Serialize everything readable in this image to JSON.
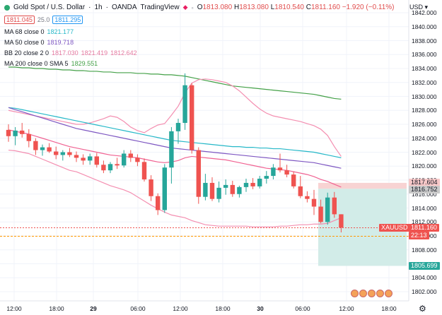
{
  "header": {
    "symbol": "Gold Spot / U.S. Dollar",
    "interval": "1h",
    "exchange": "OANDA",
    "platform": "TradingView",
    "bid": "1811.045",
    "spread": "25.0",
    "ask": "1811.295",
    "ohlc": {
      "open_label": "O",
      "open": "1813.080",
      "high_label": "H",
      "high": "1813.080",
      "low_label": "L",
      "low": "1810.540",
      "close_label": "C",
      "close": "1811.160",
      "change": "−1.920 (−0.11%)"
    },
    "currency": "USD"
  },
  "indicators": [
    {
      "name": "MA 68 close 0",
      "values": [
        "1821.177"
      ],
      "color": "#26b8c8"
    },
    {
      "name": "MA 50 close 0",
      "values": [
        "1819.718"
      ],
      "color": "#7e57c2"
    },
    {
      "name": "BB 20 close 2 0",
      "values": [
        "1817.030",
        "1821.419",
        "1812.642"
      ],
      "color": "#e57aa0"
    },
    {
      "name": "MA 200 close 0 SMA 5",
      "values": [
        "1829.551"
      ],
      "color": "#43a047"
    }
  ],
  "price_axis": {
    "ticks": [
      "1842.000",
      "1840.000",
      "1838.000",
      "1836.000",
      "1834.000",
      "1832.000",
      "1830.000",
      "1828.000",
      "1826.000",
      "1824.000",
      "1822.000",
      "1820.000",
      "1818.000",
      "1816.000",
      "1814.000",
      "1812.000",
      "1810.000",
      "1808.000",
      "1806.000",
      "1804.000",
      "1802.000"
    ],
    "tags": {
      "stop": "1817.604",
      "entry": "1816.752",
      "current_symbol": "XAUUSD",
      "current": "1811.160",
      "countdown": "22:13",
      "target": "1805.699"
    }
  },
  "time_axis": [
    "12:00",
    "18:00",
    "29",
    "06:00",
    "12:00",
    "18:00",
    "30",
    "06:00",
    "12:00",
    "18:00"
  ],
  "colors": {
    "up": "#26a69a",
    "down": "#ef5350",
    "stop_zone": "#f8d3d3",
    "target_zone": "#d2ece8"
  },
  "chart_data": {
    "type": "candlestick",
    "ylim": [
      1801,
      1843
    ],
    "candles": [
      [
        1825.2,
        1826.0,
        1823.5,
        1824.3
      ],
      [
        1824.3,
        1825.6,
        1823.0,
        1825.1
      ],
      [
        1825.1,
        1826.2,
        1824.1,
        1824.6
      ],
      [
        1824.6,
        1825.3,
        1822.7,
        1823.6
      ],
      [
        1823.6,
        1824.0,
        1821.6,
        1822.3
      ],
      [
        1822.3,
        1823.1,
        1821.5,
        1822.7
      ],
      [
        1822.7,
        1823.3,
        1821.9,
        1822.1
      ],
      [
        1822.1,
        1822.8,
        1821.0,
        1821.6
      ],
      [
        1821.6,
        1822.3,
        1820.8,
        1822.0
      ],
      [
        1822.0,
        1822.6,
        1821.3,
        1821.6
      ],
      [
        1821.6,
        1822.1,
        1820.6,
        1821.2
      ],
      [
        1821.2,
        1821.7,
        1820.2,
        1820.8
      ],
      [
        1820.8,
        1821.8,
        1820.2,
        1821.4
      ],
      [
        1821.4,
        1821.9,
        1819.8,
        1820.2
      ],
      [
        1820.2,
        1820.8,
        1819.0,
        1819.4
      ],
      [
        1819.4,
        1820.6,
        1819.0,
        1820.3
      ],
      [
        1820.3,
        1821.2,
        1819.6,
        1820.1
      ],
      [
        1820.1,
        1822.3,
        1819.8,
        1821.8
      ],
      [
        1821.8,
        1822.3,
        1820.6,
        1821.2
      ],
      [
        1821.2,
        1821.7,
        1820.0,
        1820.6
      ],
      [
        1820.6,
        1821.1,
        1817.8,
        1818.1
      ],
      [
        1818.1,
        1818.7,
        1815.0,
        1815.7
      ],
      [
        1815.7,
        1816.1,
        1813.0,
        1813.7
      ],
      [
        1813.7,
        1820.3,
        1813.3,
        1819.8
      ],
      [
        1819.8,
        1825.6,
        1817.5,
        1825.0
      ],
      [
        1825.0,
        1826.8,
        1823.2,
        1826.2
      ],
      [
        1826.2,
        1833.3,
        1825.2,
        1831.6
      ],
      [
        1831.6,
        1831.9,
        1821.8,
        1822.3
      ],
      [
        1822.3,
        1822.7,
        1814.6,
        1815.6
      ],
      [
        1815.6,
        1818.9,
        1815.1,
        1817.6
      ],
      [
        1817.6,
        1818.4,
        1815.0,
        1815.3
      ],
      [
        1815.3,
        1817.8,
        1814.8,
        1816.9
      ],
      [
        1816.9,
        1818.1,
        1815.9,
        1817.3
      ],
      [
        1817.3,
        1817.9,
        1815.6,
        1816.0
      ],
      [
        1816.0,
        1817.2,
        1815.5,
        1817.0
      ],
      [
        1817.0,
        1818.2,
        1816.3,
        1817.6
      ],
      [
        1817.6,
        1818.3,
        1816.7,
        1817.1
      ],
      [
        1817.1,
        1818.6,
        1816.8,
        1818.2
      ],
      [
        1818.2,
        1819.3,
        1817.5,
        1818.6
      ],
      [
        1818.6,
        1820.3,
        1818.1,
        1819.8
      ],
      [
        1819.8,
        1821.8,
        1819.1,
        1819.4
      ],
      [
        1819.4,
        1820.2,
        1818.4,
        1818.8
      ],
      [
        1818.8,
        1819.2,
        1816.8,
        1817.1
      ],
      [
        1817.1,
        1818.6,
        1815.4,
        1815.7
      ],
      [
        1815.7,
        1816.4,
        1814.8,
        1815.3
      ],
      [
        1815.3,
        1816.6,
        1813.0,
        1814.2
      ],
      [
        1814.2,
        1815.2,
        1811.8,
        1812.0
      ],
      [
        1812.0,
        1816.2,
        1811.6,
        1815.5
      ],
      [
        1815.5,
        1816.3,
        1812.6,
        1813.1
      ],
      [
        1813.1,
        1813.1,
        1810.5,
        1811.2
      ]
    ],
    "ma68": [
      1828.4,
      1828.3,
      1828.1,
      1827.9,
      1827.7,
      1827.5,
      1827.3,
      1827.1,
      1826.9,
      1826.7,
      1826.5,
      1826.3,
      1826.1,
      1825.9,
      1825.7,
      1825.5,
      1825.3,
      1825.1,
      1824.9,
      1824.7,
      1824.5,
      1824.3,
      1824.1,
      1823.9,
      1823.7,
      1823.6,
      1823.5,
      1823.4,
      1823.3,
      1823.2,
      1823.1,
      1823.0,
      1822.9,
      1822.8,
      1822.8,
      1822.7,
      1822.7,
      1822.6,
      1822.6,
      1822.5,
      1822.5,
      1822.4,
      1822.3,
      1822.2,
      1822.1,
      1822.0,
      1821.8,
      1821.6,
      1821.4,
      1821.2
    ],
    "ma50": [
      1828.4,
      1828.1,
      1827.8,
      1827.5,
      1827.2,
      1826.9,
      1826.6,
      1826.3,
      1826.0,
      1825.7,
      1825.4,
      1825.2,
      1825.0,
      1824.8,
      1824.6,
      1824.4,
      1824.2,
      1824.0,
      1823.8,
      1823.6,
      1823.4,
      1823.2,
      1823.0,
      1822.8,
      1822.6,
      1822.5,
      1822.4,
      1822.3,
      1822.2,
      1822.1,
      1822.0,
      1821.9,
      1821.8,
      1821.7,
      1821.6,
      1821.5,
      1821.4,
      1821.3,
      1821.2,
      1821.1,
      1821.0,
      1820.9,
      1820.8,
      1820.7,
      1820.6,
      1820.5,
      1820.3,
      1820.1,
      1819.9,
      1819.7
    ],
    "bb_mid": [
      1825.2,
      1825.0,
      1824.8,
      1824.6,
      1824.3,
      1824.0,
      1823.7,
      1823.4,
      1823.1,
      1822.8,
      1822.6,
      1822.4,
      1822.2,
      1822.0,
      1821.8,
      1821.6,
      1821.5,
      1821.4,
      1821.3,
      1821.2,
      1821.0,
      1820.8,
      1820.6,
      1820.5,
      1820.6,
      1820.8,
      1821.2,
      1821.4,
      1821.3,
      1821.2,
      1821.1,
      1821.0,
      1820.9,
      1820.7,
      1820.5,
      1820.3,
      1820.1,
      1819.9,
      1819.7,
      1819.6,
      1819.5,
      1819.4,
      1819.2,
      1819.0,
      1818.8,
      1818.5,
      1818.1,
      1817.8,
      1817.4,
      1817.0
    ],
    "bb_up": [
      1828.0,
      1827.8,
      1827.6,
      1827.4,
      1827.2,
      1827.0,
      1826.8,
      1826.6,
      1826.4,
      1826.2,
      1826.0,
      1826.0,
      1826.2,
      1826.5,
      1826.8,
      1827.2,
      1827.0,
      1826.4,
      1825.6,
      1825.1,
      1824.8,
      1825.4,
      1825.9,
      1826.1,
      1827.3,
      1828.6,
      1830.5,
      1831.9,
      1832.4,
      1832.5,
      1832.4,
      1832.2,
      1832.0,
      1831.5,
      1830.8,
      1829.9,
      1829.0,
      1828.2,
      1827.6,
      1827.2,
      1827.0,
      1826.8,
      1826.6,
      1826.4,
      1826.1,
      1825.8,
      1825.3,
      1824.4,
      1822.8,
      1821.4
    ],
    "bb_low": [
      1822.3,
      1822.2,
      1822.0,
      1821.8,
      1821.4,
      1821.0,
      1820.6,
      1820.2,
      1819.8,
      1819.4,
      1819.2,
      1818.8,
      1818.4,
      1818.0,
      1817.6,
      1817.2,
      1816.9,
      1816.6,
      1816.2,
      1815.6,
      1815.0,
      1814.4,
      1813.9,
      1813.4,
      1813.0,
      1812.8,
      1812.6,
      1812.2,
      1811.9,
      1811.6,
      1811.5,
      1811.4,
      1811.4,
      1811.4,
      1811.4,
      1811.4,
      1811.3,
      1811.3,
      1811.3,
      1811.3,
      1811.4,
      1811.4,
      1811.5,
      1811.6,
      1811.6,
      1811.7,
      1811.7,
      1811.8,
      1812.2,
      1812.6
    ],
    "ma200": [
      1834.2,
      1834.2,
      1834.1,
      1834.1,
      1834.0,
      1834.0,
      1833.9,
      1833.9,
      1833.8,
      1833.8,
      1833.7,
      1833.7,
      1833.6,
      1833.6,
      1833.5,
      1833.5,
      1833.4,
      1833.4,
      1833.4,
      1833.3,
      1833.3,
      1833.2,
      1833.2,
      1833.1,
      1833.1,
      1833.0,
      1832.9,
      1832.7,
      1832.5,
      1832.3,
      1832.1,
      1831.9,
      1831.7,
      1831.5,
      1831.4,
      1831.3,
      1831.2,
      1831.1,
      1831.0,
      1830.9,
      1830.8,
      1830.7,
      1830.6,
      1830.5,
      1830.4,
      1830.3,
      1830.1,
      1829.9,
      1829.7,
      1829.6
    ]
  }
}
